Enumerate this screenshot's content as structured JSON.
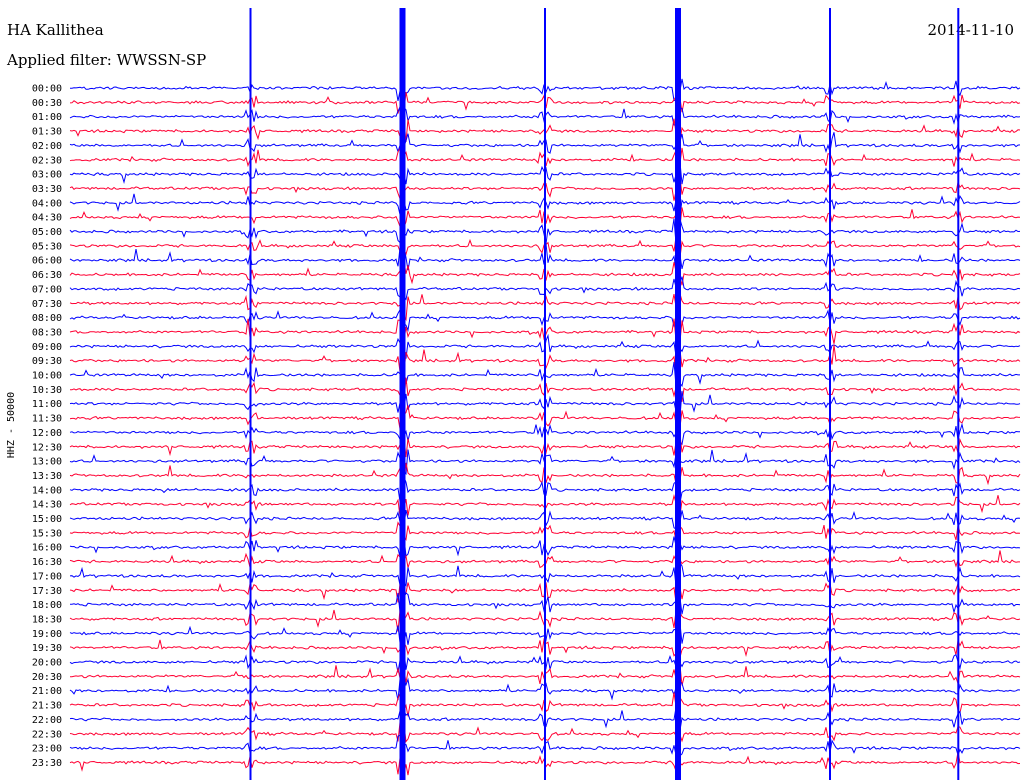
{
  "header": {
    "station": "HA Kallithea",
    "date": "2014-11-10",
    "filter": "Applied filter: WWSSN-SP"
  },
  "chart_data": {
    "type": "line",
    "title": "HA Kallithea",
    "ylabel": "HHZ - 50000",
    "date": "2014-11-10",
    "filter": "WWSSN-SP",
    "rows": [
      "00:00",
      "00:30",
      "01:00",
      "01:30",
      "02:00",
      "02:30",
      "03:00",
      "03:30",
      "04:00",
      "04:30",
      "05:00",
      "05:30",
      "06:00",
      "06:30",
      "07:00",
      "07:30",
      "08:00",
      "08:30",
      "09:00",
      "09:30",
      "10:00",
      "10:30",
      "11:00",
      "11:30",
      "12:00",
      "12:30",
      "13:00",
      "13:30",
      "14:00",
      "14:30",
      "15:00",
      "15:30",
      "16:00",
      "16:30",
      "17:00",
      "17:30",
      "18:00",
      "18:30",
      "19:00",
      "19:30",
      "20:00",
      "20:30",
      "21:00",
      "21:30",
      "22:00",
      "22:30",
      "23:00",
      "23:30"
    ],
    "series_colors": [
      "#0000ff",
      "#ff0033"
    ],
    "events": [
      {
        "t": 0.35,
        "rows": [
          0,
          48
        ],
        "amp": 1.0
      },
      {
        "t": 0.64,
        "rows": [
          0,
          48
        ],
        "amp": 1.0
      },
      {
        "t": 0.19,
        "rows": [
          0,
          48
        ],
        "amp": 0.45
      },
      {
        "t": 0.5,
        "rows": [
          0,
          48
        ],
        "amp": 0.55
      },
      {
        "t": 0.8,
        "rows": [
          0,
          48
        ],
        "amp": 0.5
      },
      {
        "t": 0.935,
        "rows": [
          0,
          48
        ],
        "amp": 0.55
      }
    ],
    "grid": false,
    "legend": "none"
  },
  "colors": {
    "blue": "#0000ff",
    "red": "#ff0033",
    "text": "#000000",
    "background": "#ffffff"
  }
}
